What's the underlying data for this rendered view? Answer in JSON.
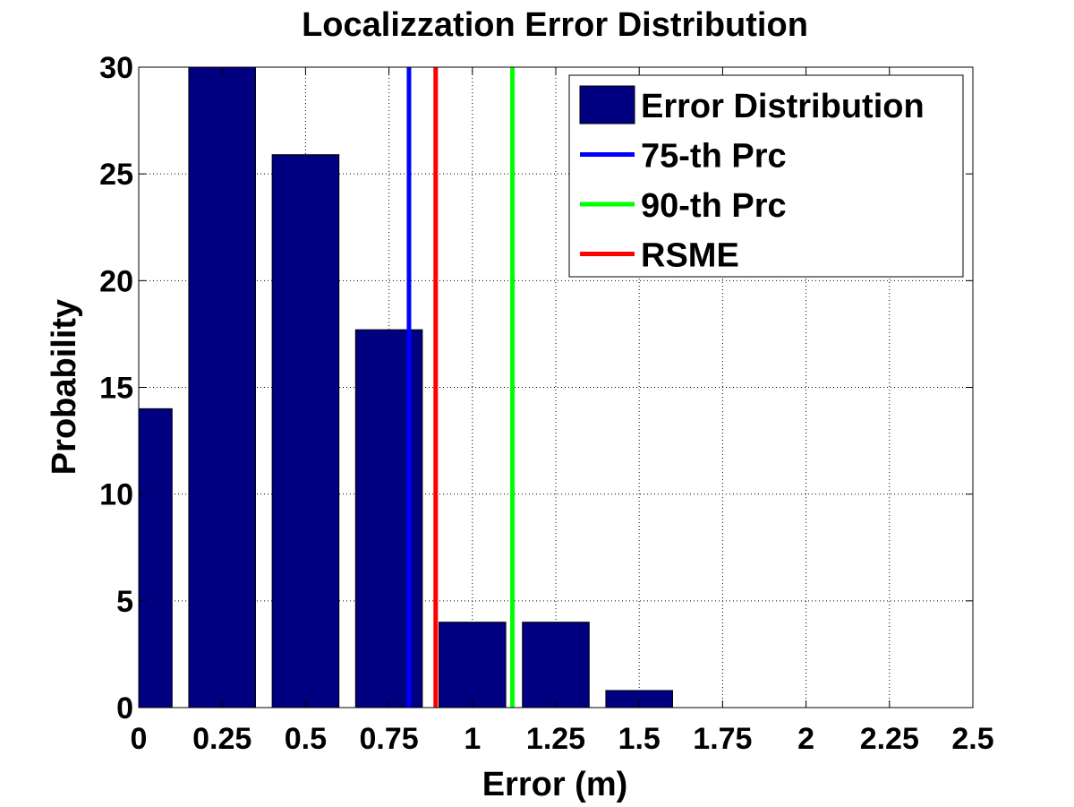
{
  "chart_data": {
    "type": "bar",
    "title": "Localizzation Error Distribution",
    "xlabel": "Error (m)",
    "ylabel": "Probability",
    "xlim": [
      0,
      2.5
    ],
    "ylim": [
      0,
      30
    ],
    "xticks": [
      "0",
      "0.25",
      "0.5",
      "0.75",
      "1",
      "1.25",
      "1.5",
      "1.75",
      "2",
      "2.25",
      "2.5"
    ],
    "yticks": [
      "0",
      "5",
      "10",
      "15",
      "20",
      "25",
      "30"
    ],
    "grid": true,
    "bar_color": "#000080",
    "bar_width": 0.2,
    "series": [
      {
        "name": "Error Distribution",
        "x": [
          0,
          0.25,
          0.5,
          0.75,
          1.0,
          1.25,
          1.5,
          1.75,
          2.0,
          2.25
        ],
        "values": [
          14,
          30,
          25.9,
          17.7,
          4,
          4,
          0.8,
          0,
          0,
          0
        ]
      }
    ],
    "reference_lines": [
      {
        "name": "75-th Prc",
        "x": 0.81,
        "color": "#0000ff"
      },
      {
        "name": "90-th Prc",
        "x": 1.12,
        "color": "#00ff00"
      },
      {
        "name": "RSME",
        "x": 0.89,
        "color": "#ff0000"
      }
    ],
    "legend": {
      "placement": "top-right",
      "entries": [
        {
          "label": "Error Distribution",
          "kind": "bar",
          "color": "#000080"
        },
        {
          "label": "75-th Prc",
          "kind": "line",
          "color": "#0000ff"
        },
        {
          "label": "90-th Prc",
          "kind": "line",
          "color": "#00ff00"
        },
        {
          "label": "RSME",
          "kind": "line",
          "color": "#ff0000"
        }
      ]
    }
  }
}
